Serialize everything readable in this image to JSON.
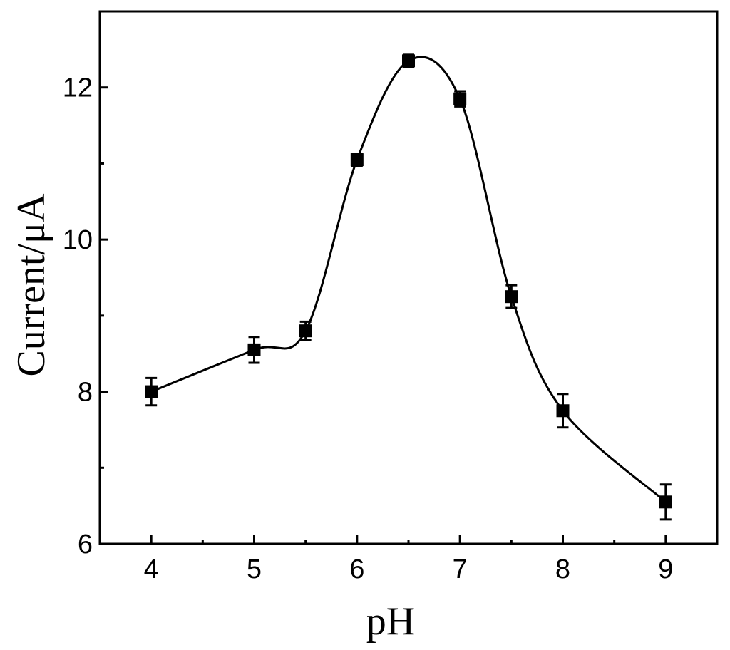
{
  "chart_data": {
    "type": "scatter",
    "xlabel": "pH",
    "ylabel": "Current/μA",
    "xlim": [
      3.5,
      9.5
    ],
    "ylim": [
      6,
      13
    ],
    "x_ticks": [
      4,
      5,
      6,
      7,
      8,
      9
    ],
    "x_minor_ticks": [
      4.5,
      5.5,
      6.5,
      7.5,
      8.5
    ],
    "y_ticks": [
      6,
      8,
      10,
      12
    ],
    "y_minor_ticks": [
      7,
      9,
      11
    ],
    "grid": false,
    "legend": "none",
    "smooth_curve": true,
    "color": "#000000",
    "series": [
      {
        "x": [
          4,
          5,
          5.5,
          6,
          6.5,
          7,
          7.5,
          8,
          9
        ],
        "y": [
          8.0,
          8.55,
          8.8,
          11.05,
          12.35,
          11.85,
          9.25,
          7.75,
          6.55
        ],
        "error": [
          0.18,
          0.17,
          0.12,
          0.08,
          0.08,
          0.1,
          0.15,
          0.22,
          0.23
        ]
      }
    ]
  }
}
